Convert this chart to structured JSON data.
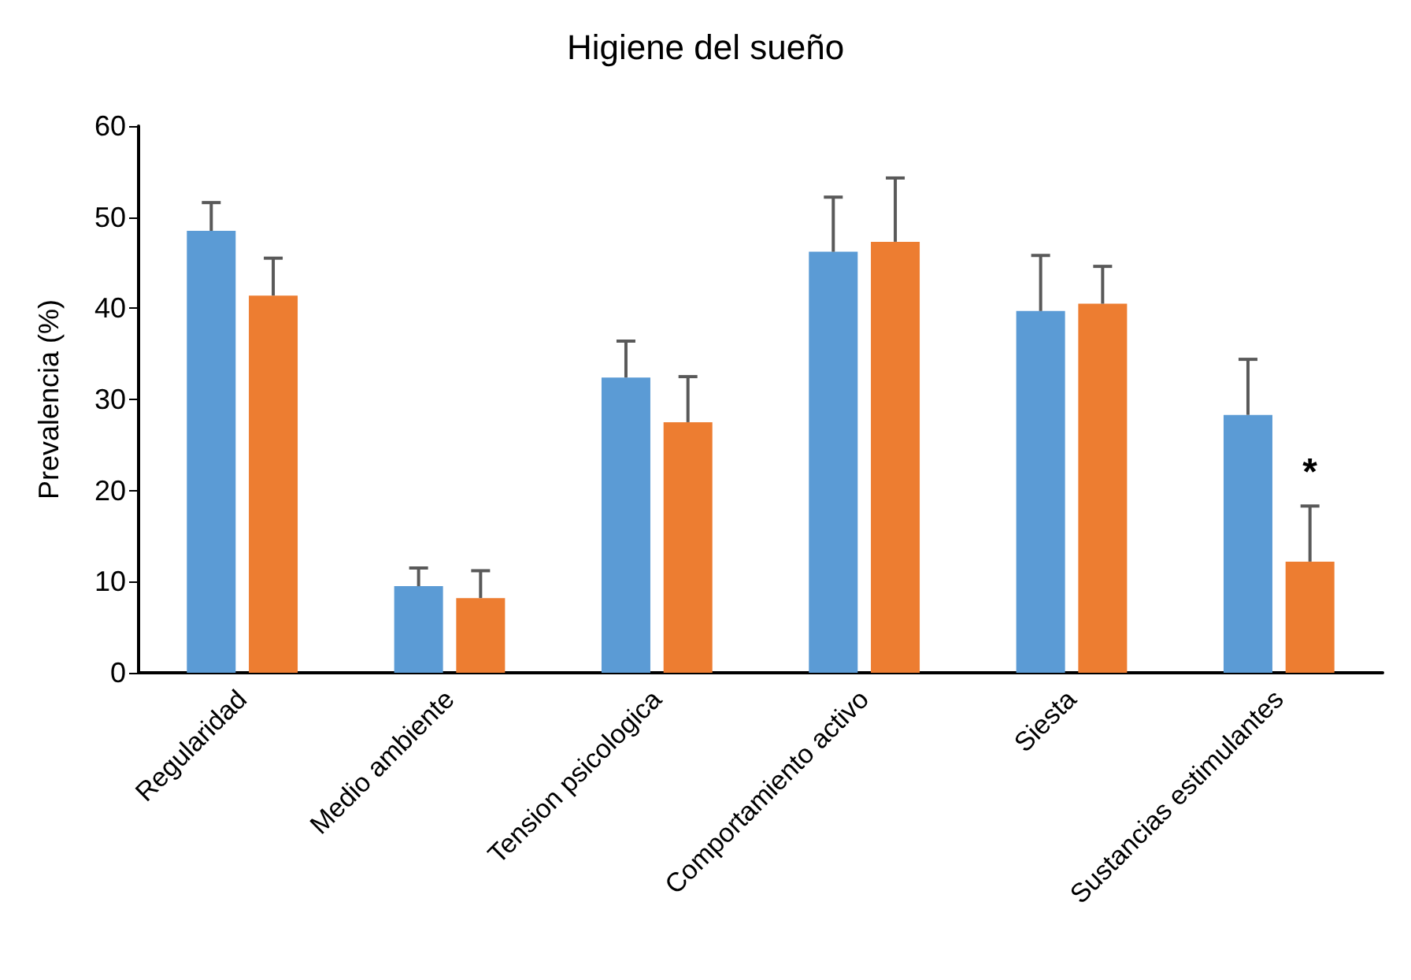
{
  "chart_data": {
    "type": "bar",
    "title": "Higiene del sueño",
    "ylabel": "Prevalencia (%)",
    "categories": [
      "Regularidad",
      "Medio ambiente",
      "Tension psicologica",
      "Comportamiento activo",
      "Siesta",
      "Sustancias estimulantes"
    ],
    "series": [
      {
        "color": "#5b9bd5",
        "values": [
          48.5,
          9.5,
          32.4,
          46.2,
          39.7,
          28.3
        ],
        "errors": [
          3.1,
          2.0,
          4.0,
          6.0,
          6.1,
          6.1
        ]
      },
      {
        "color": "#ed7d31",
        "values": [
          41.4,
          8.2,
          27.5,
          47.3,
          40.5,
          12.2
        ],
        "errors": [
          4.1,
          3.0,
          5.0,
          7.0,
          4.1,
          6.1
        ]
      }
    ],
    "ylim": [
      0,
      60
    ],
    "yticks": [
      0,
      10,
      20,
      30,
      40,
      50,
      60
    ],
    "grid": false,
    "annotations": [
      {
        "text": "*",
        "x": "Sustancias estimulantes",
        "y": 22
      }
    ]
  }
}
